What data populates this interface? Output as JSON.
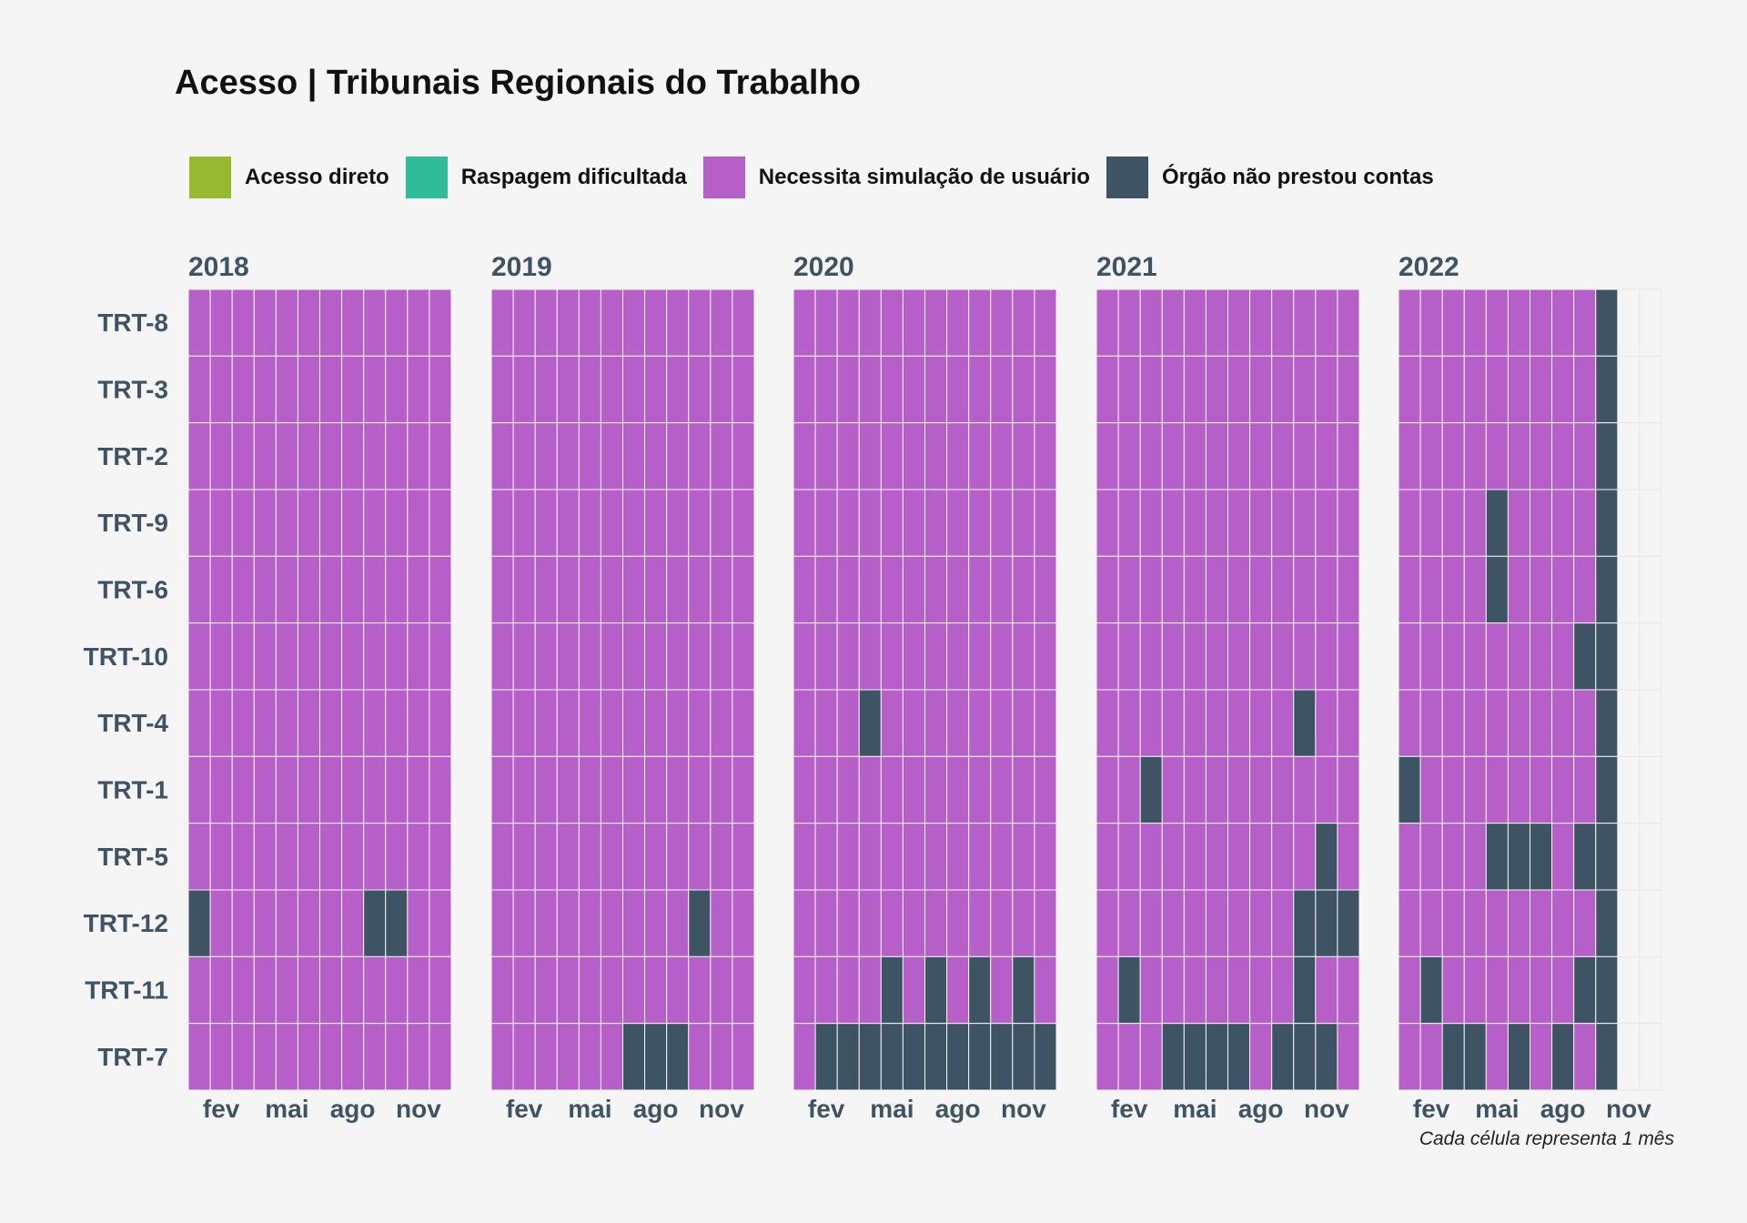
{
  "chart_data": {
    "type": "heatmap",
    "title": "Acesso | Tribunais Regionais do Trabalho",
    "caption": "Cada célula representa 1 mês",
    "legend": {
      "position": "top-left",
      "entries": [
        {
          "key": "A",
          "label": "Acesso direto",
          "color": "#97b930"
        },
        {
          "key": "R",
          "label": "Raspagem dificultada",
          "color": "#2ebd96"
        },
        {
          "key": "N",
          "label": "Necessita simulação de usuário",
          "color": "#b65fc8"
        },
        {
          "key": "O",
          "label": "Órgão não prestou contas",
          "color": "#3e5364"
        }
      ]
    },
    "empty_color": "#f5f5f5",
    "facets": [
      "2018",
      "2019",
      "2020",
      "2021",
      "2022"
    ],
    "rows": [
      "TRT-8",
      "TRT-3",
      "TRT-2",
      "TRT-9",
      "TRT-6",
      "TRT-10",
      "TRT-4",
      "TRT-1",
      "TRT-5",
      "TRT-12",
      "TRT-11",
      "TRT-7"
    ],
    "x_ticks": [
      {
        "month": 2,
        "label": "fev"
      },
      {
        "month": 5,
        "label": "mai"
      },
      {
        "month": 8,
        "label": "ago"
      },
      {
        "month": 11,
        "label": "nov"
      }
    ],
    "months_per_year": 12,
    "values": {
      "2018": {
        "TRT-8": "NNNNNNNNNNNN",
        "TRT-3": "NNNNNNNNNNNN",
        "TRT-2": "NNNNNNNNNNNN",
        "TRT-9": "NNNNNNNNNNNN",
        "TRT-6": "NNNNNNNNNNNN",
        "TRT-10": "NNNNNNNNNNNN",
        "TRT-4": "NNNNNNNNNNNN",
        "TRT-1": "NNNNNNNNNNNN",
        "TRT-5": "NNNNNNNNNNNN",
        "TRT-12": "ONNNNNNNOONN",
        "TRT-11": "NNNNNNNNNNNN",
        "TRT-7": "NNNNNNNNNNNN"
      },
      "2019": {
        "TRT-8": "NNNNNNNNNNNN",
        "TRT-3": "NNNNNNNNNNNN",
        "TRT-2": "NNNNNNNNNNNN",
        "TRT-9": "NNNNNNNNNNNN",
        "TRT-6": "NNNNNNNNNNNN",
        "TRT-10": "NNNNNNNNNNNN",
        "TRT-4": "NNNNNNNNNNNN",
        "TRT-1": "NNNNNNNNNNNN",
        "TRT-5": "NNNNNNNNNNNN",
        "TRT-12": "NNNNNNNNNONN",
        "TRT-11": "NNNNNNNNNNNN",
        "TRT-7": "NNNNNNOOONNN"
      },
      "2020": {
        "TRT-8": "NNNNNNNNNNNN",
        "TRT-3": "NNNNNNNNNNNN",
        "TRT-2": "NNNNNNNNNNNN",
        "TRT-9": "NNNNNNNNNNNN",
        "TRT-6": "NNNNNNNNNNNN",
        "TRT-10": "NNNNNNNNNNNN",
        "TRT-4": "NNNONNNNNNNN",
        "TRT-1": "NNNNNNNNNNNN",
        "TRT-5": "NNNNNNNNNNNN",
        "TRT-12": "NNNNNNNNNNNN",
        "TRT-11": "NNNNONONONON",
        "TRT-7": "NOOOOOOOOOOO"
      },
      "2021": {
        "TRT-8": "NNNNNNNNNNNN",
        "TRT-3": "NNNNNNNNNNNN",
        "TRT-2": "NNNNNNNNNNNN",
        "TRT-9": "NNNNNNNNNNNN",
        "TRT-6": "NNNNNNNNNNNN",
        "TRT-10": "NNNNNNNNNNNN",
        "TRT-4": "NNNNNNNNNONN",
        "TRT-1": "NNONNNNNNNNN",
        "TRT-5": "NNNNNNNNNNON",
        "TRT-12": "NNNNNNNNNOOO",
        "TRT-11": "NONNNNNNNONN",
        "TRT-7": "NNNOOOONOOON"
      },
      "2022": {
        "TRT-8": "NNNNNNNNNO--",
        "TRT-3": "NNNNNNNNNO--",
        "TRT-2": "NNNNNNNNNO--",
        "TRT-9": "NNNNONNNNO--",
        "TRT-6": "NNNNONNNNO--",
        "TRT-10": "NNNNNNNNOO--",
        "TRT-4": "NNNNNNNNNO--",
        "TRT-1": "ONNNNNNNNO--",
        "TRT-5": "NNNNOOONOO--",
        "TRT-12": "NNNNNNNNNO--",
        "TRT-11": "NONNNNNNOO--",
        "TRT-7": "NNOONONONO--"
      }
    }
  }
}
